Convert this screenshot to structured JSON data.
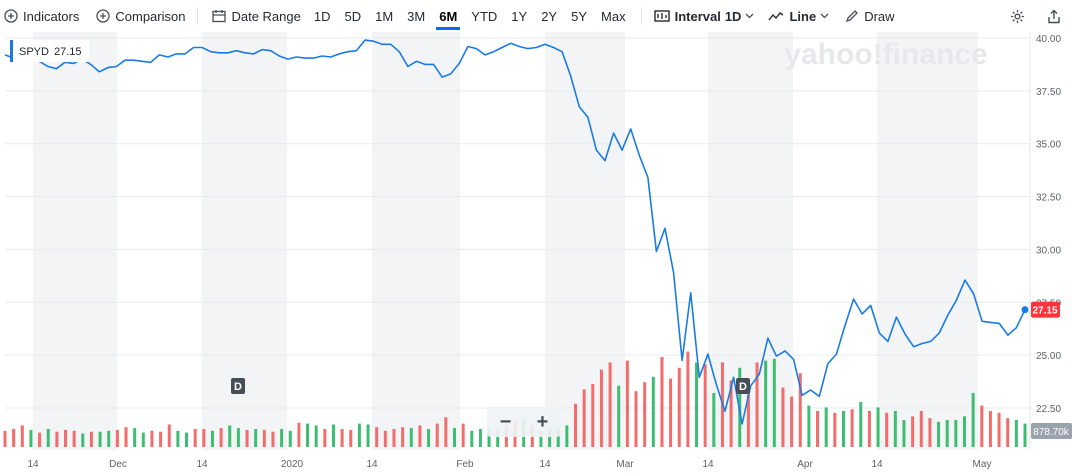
{
  "toolbar": {
    "indicators_label": "Indicators",
    "comparison_label": "Comparison",
    "date_range_label": "Date Range",
    "ranges": [
      "1D",
      "5D",
      "1M",
      "3M",
      "6M",
      "YTD",
      "1Y",
      "2Y",
      "5Y",
      "Max"
    ],
    "active_range": "6M",
    "interval_label": "Interval",
    "interval_value": "1D",
    "chart_type_label": "Line",
    "draw_label": "Draw"
  },
  "colors": {
    "line": "#1a7be4",
    "up_volume": "#3ebd72",
    "down_volume": "#f26c6c",
    "price_tag": "#ff333a",
    "band": "#f3f4f5",
    "accent": "#0f69ff"
  },
  "watermark": "yahoo!finance",
  "chart_data": {
    "type": "line",
    "symbol": "SPYD",
    "last_value_label": "27.15",
    "volume_label": "878.70k",
    "ylim": [
      21.5,
      40.3
    ],
    "y_ticks": [
      "40.00",
      "37.50",
      "35.00",
      "32.50",
      "30.00",
      "27.50",
      "25.00",
      "22.50"
    ],
    "x_tick_labels": [
      "14",
      "Dec",
      "14",
      "2020",
      "14",
      "Feb",
      "14",
      "Mar",
      "14",
      "Apr",
      "14",
      "May"
    ],
    "dividend_markers": [
      "D",
      "D"
    ],
    "series": [
      {
        "values": [
          39.2,
          39.05,
          39.3,
          39.3,
          38.9,
          38.65,
          38.55,
          38.85,
          38.8,
          39.0,
          38.75,
          38.4,
          38.6,
          38.65,
          38.95,
          38.95,
          38.9,
          38.85,
          39.2,
          39.1,
          39.25,
          39.25,
          39.55,
          39.55,
          39.35,
          39.3,
          39.3,
          39.4,
          39.3,
          39.25,
          39.45,
          39.4,
          39.15,
          39.0,
          39.1,
          39.05,
          39.05,
          39.15,
          39.1,
          39.25,
          39.35,
          39.4,
          39.9,
          39.85,
          39.7,
          39.7,
          39.35,
          38.65,
          38.9,
          38.75,
          38.75,
          38.15,
          38.3,
          38.8,
          39.6,
          39.5,
          39.2,
          39.35,
          39.55,
          39.75,
          39.6,
          39.5,
          39.55,
          39.7,
          39.55,
          39.35,
          38.2,
          36.75,
          36.25,
          34.7,
          34.2,
          35.5,
          34.7,
          35.7,
          34.45,
          33.4,
          29.9,
          31.0,
          28.9,
          24.75,
          27.95,
          23.95,
          25.05,
          23.6,
          22.35,
          23.95,
          21.75,
          23.55,
          24.1,
          25.8,
          24.95,
          25.2,
          24.8,
          23.1,
          23.35,
          23.05,
          24.6,
          25.05,
          26.4,
          27.65,
          26.95,
          27.35,
          26.05,
          25.65,
          26.8,
          26.0,
          25.4,
          25.55,
          25.65,
          26.05,
          26.9,
          27.6,
          28.55,
          27.9,
          26.6,
          26.55,
          26.5,
          25.95,
          26.3,
          27.15
        ]
      }
    ],
    "volume": [
      {
        "v": 0.9,
        "up": false
      },
      {
        "v": 1.0,
        "up": false
      },
      {
        "v": 1.2,
        "up": false
      },
      {
        "v": 0.95,
        "up": true
      },
      {
        "v": 0.8,
        "up": false
      },
      {
        "v": 1.0,
        "up": true
      },
      {
        "v": 0.85,
        "up": false
      },
      {
        "v": 0.95,
        "up": false
      },
      {
        "v": 0.9,
        "up": false
      },
      {
        "v": 0.75,
        "up": true
      },
      {
        "v": 0.85,
        "up": false
      },
      {
        "v": 0.85,
        "up": true
      },
      {
        "v": 0.9,
        "up": true
      },
      {
        "v": 0.95,
        "up": false
      },
      {
        "v": 1.1,
        "up": false
      },
      {
        "v": 1.05,
        "up": true
      },
      {
        "v": 0.8,
        "up": true
      },
      {
        "v": 0.9,
        "up": false
      },
      {
        "v": 0.85,
        "up": false
      },
      {
        "v": 1.25,
        "up": false
      },
      {
        "v": 0.9,
        "up": true
      },
      {
        "v": 0.8,
        "up": true
      },
      {
        "v": 1.0,
        "up": false
      },
      {
        "v": 1.0,
        "up": false
      },
      {
        "v": 0.9,
        "up": true
      },
      {
        "v": 1.05,
        "up": false
      },
      {
        "v": 1.2,
        "up": true
      },
      {
        "v": 1.05,
        "up": true
      },
      {
        "v": 0.95,
        "up": false
      },
      {
        "v": 1.0,
        "up": true
      },
      {
        "v": 0.95,
        "up": false
      },
      {
        "v": 0.85,
        "up": false
      },
      {
        "v": 1.0,
        "up": true
      },
      {
        "v": 0.9,
        "up": true
      },
      {
        "v": 1.35,
        "up": false
      },
      {
        "v": 1.3,
        "up": true
      },
      {
        "v": 1.2,
        "up": true
      },
      {
        "v": 1.0,
        "up": false
      },
      {
        "v": 1.25,
        "up": true
      },
      {
        "v": 1.0,
        "up": false
      },
      {
        "v": 0.95,
        "up": false
      },
      {
        "v": 1.3,
        "up": true
      },
      {
        "v": 1.25,
        "up": true
      },
      {
        "v": 1.1,
        "up": false
      },
      {
        "v": 0.9,
        "up": false
      },
      {
        "v": 1.0,
        "up": false
      },
      {
        "v": 1.1,
        "up": false
      },
      {
        "v": 1.05,
        "up": true
      },
      {
        "v": 1.2,
        "up": false
      },
      {
        "v": 1.0,
        "up": true
      },
      {
        "v": 1.3,
        "up": false
      },
      {
        "v": 1.65,
        "up": false
      },
      {
        "v": 1.05,
        "up": true
      },
      {
        "v": 1.3,
        "up": false
      },
      {
        "v": 0.9,
        "up": true
      },
      {
        "v": 1.0,
        "up": true
      },
      {
        "v": 1.05,
        "up": true
      },
      {
        "v": 1.0,
        "up": true
      },
      {
        "v": 1.2,
        "up": false
      },
      {
        "v": 1.4,
        "up": false
      },
      {
        "v": 1.6,
        "up": true
      },
      {
        "v": 1.2,
        "up": false
      },
      {
        "v": 0.9,
        "up": true
      },
      {
        "v": 1.0,
        "up": true
      },
      {
        "v": 1.05,
        "up": true
      },
      {
        "v": 1.2,
        "up": true
      },
      {
        "v": 2.4,
        "up": false
      },
      {
        "v": 3.2,
        "up": false
      },
      {
        "v": 3.5,
        "up": false
      },
      {
        "v": 4.3,
        "up": false
      },
      {
        "v": 4.7,
        "up": false
      },
      {
        "v": 3.4,
        "up": true
      },
      {
        "v": 4.8,
        "up": false
      },
      {
        "v": 3.1,
        "up": false
      },
      {
        "v": 3.6,
        "up": false
      },
      {
        "v": 3.9,
        "up": true
      },
      {
        "v": 5.0,
        "up": false
      },
      {
        "v": 3.8,
        "up": false
      },
      {
        "v": 4.4,
        "up": false
      },
      {
        "v": 5.3,
        "up": false
      },
      {
        "v": 4.7,
        "up": true
      },
      {
        "v": 4.6,
        "up": false
      },
      {
        "v": 3.0,
        "up": true
      },
      {
        "v": 4.7,
        "up": false
      },
      {
        "v": 3.7,
        "up": false
      },
      {
        "v": 4.4,
        "up": true
      },
      {
        "v": 2.9,
        "up": false
      },
      {
        "v": 4.7,
        "up": false
      },
      {
        "v": 4.8,
        "up": true
      },
      {
        "v": 4.9,
        "up": true
      },
      {
        "v": 3.3,
        "up": false
      },
      {
        "v": 2.8,
        "up": false
      },
      {
        "v": 4.1,
        "up": false
      },
      {
        "v": 2.3,
        "up": true
      },
      {
        "v": 2.0,
        "up": false
      },
      {
        "v": 2.2,
        "up": true
      },
      {
        "v": 1.9,
        "up": false
      },
      {
        "v": 2.0,
        "up": true
      },
      {
        "v": 2.1,
        "up": false
      },
      {
        "v": 2.5,
        "up": true
      },
      {
        "v": 2.0,
        "up": false
      },
      {
        "v": 2.2,
        "up": true
      },
      {
        "v": 1.9,
        "up": false
      },
      {
        "v": 2.0,
        "up": true
      },
      {
        "v": 1.5,
        "up": true
      },
      {
        "v": 1.7,
        "up": false
      },
      {
        "v": 2.0,
        "up": false
      },
      {
        "v": 1.6,
        "up": false
      },
      {
        "v": 1.4,
        "up": true
      },
      {
        "v": 1.5,
        "up": true
      },
      {
        "v": 1.5,
        "up": true
      },
      {
        "v": 1.7,
        "up": true
      },
      {
        "v": 3.0,
        "up": true
      },
      {
        "v": 2.3,
        "up": false
      },
      {
        "v": 2.0,
        "up": false
      },
      {
        "v": 1.9,
        "up": false
      },
      {
        "v": 1.6,
        "up": false
      },
      {
        "v": 1.5,
        "up": true
      },
      {
        "v": 1.3,
        "up": true
      }
    ]
  }
}
